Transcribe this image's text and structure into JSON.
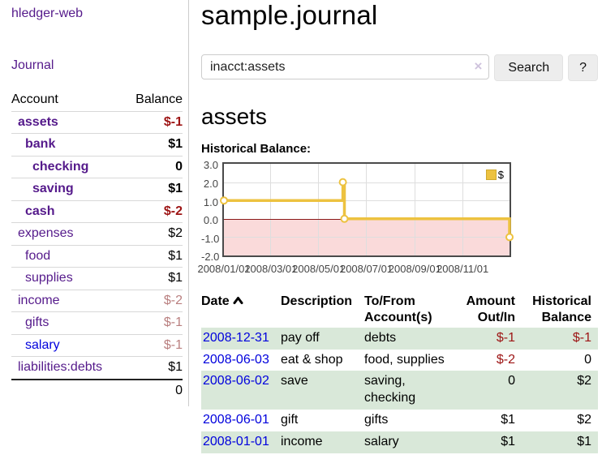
{
  "colors": {
    "link_purple": "#551a8b",
    "link_blue": "#0000dd",
    "negative_strong": "#9d1414",
    "negative_muted": "#b97f7f",
    "row_green": "#d9e8d9",
    "series_yellow": "#edc240",
    "negative_region_pink": "#fadada",
    "zero_line_red": "#8b1a1a"
  },
  "sidebar": {
    "brand": "hledger-web",
    "journal_link": "Journal",
    "accounts": {
      "headers": {
        "account": "Account",
        "balance": "Balance"
      },
      "rows": [
        {
          "name": "assets",
          "balance": "$-1"
        },
        {
          "name": "bank",
          "balance": "$1"
        },
        {
          "name": "checking",
          "balance": "0"
        },
        {
          "name": "saving",
          "balance": "$1"
        },
        {
          "name": "cash",
          "balance": "$-2"
        },
        {
          "name": "expenses",
          "balance": "$2"
        },
        {
          "name": "food",
          "balance": "$1"
        },
        {
          "name": "supplies",
          "balance": "$1"
        },
        {
          "name": "income",
          "balance": "$-2"
        },
        {
          "name": "gifts",
          "balance": "$-1"
        },
        {
          "name": "salary",
          "balance": "$-1"
        },
        {
          "name": "liabilities:debts",
          "balance": "$1"
        }
      ],
      "total": "0"
    }
  },
  "main": {
    "title": "sample.journal",
    "search": {
      "value": "inacct:assets",
      "clear_icon": "×",
      "search_button": "Search",
      "help_button": "?"
    },
    "account_heading": "assets",
    "chart_title": "Historical Balance:"
  },
  "chart_data": {
    "type": "line",
    "step": true,
    "title": "Historical Balance",
    "series": [
      {
        "name": "$",
        "color": "#edc240",
        "points": [
          [
            "2008-01-01",
            1
          ],
          [
            "2008-06-01",
            2
          ],
          [
            "2008-06-03",
            0
          ],
          [
            "2008-12-31",
            -1
          ]
        ]
      }
    ],
    "x_range": [
      "2008-01-01",
      "2008-12-31"
    ],
    "ylim": [
      -2,
      3
    ],
    "y_ticks": [
      "3.0",
      "2.0",
      "1.0",
      "0.0",
      "-1.0",
      "-2.0"
    ],
    "x_ticks": [
      "2008/01/01",
      "2008/03/01",
      "2008/05/01",
      "2008/07/01",
      "2008/09/01",
      "2008/11/01"
    ],
    "legend_position": "top-right",
    "grid": true,
    "negative_region": true
  },
  "register": {
    "headers": {
      "date": "Date",
      "sort_icon_name": "chevron-up",
      "description": "Description",
      "account": "To/From Account(s)",
      "amount": "Amount Out/In",
      "balance": "Historical Balance"
    },
    "rows": [
      {
        "date": "2008-12-31",
        "description": "pay off",
        "account": "debts",
        "amount": "$-1",
        "balance": "$-1"
      },
      {
        "date": "2008-06-03",
        "description": "eat & shop",
        "account": "food, supplies",
        "amount": "$-2",
        "balance": "0"
      },
      {
        "date": "2008-06-02",
        "description": "save",
        "account": "saving, checking",
        "amount": "0",
        "balance": "$2"
      },
      {
        "date": "2008-06-01",
        "description": "gift",
        "account": "gifts",
        "amount": "$1",
        "balance": "$2"
      },
      {
        "date": "2008-01-01",
        "description": "income",
        "account": "salary",
        "amount": "$1",
        "balance": "$1"
      }
    ]
  }
}
